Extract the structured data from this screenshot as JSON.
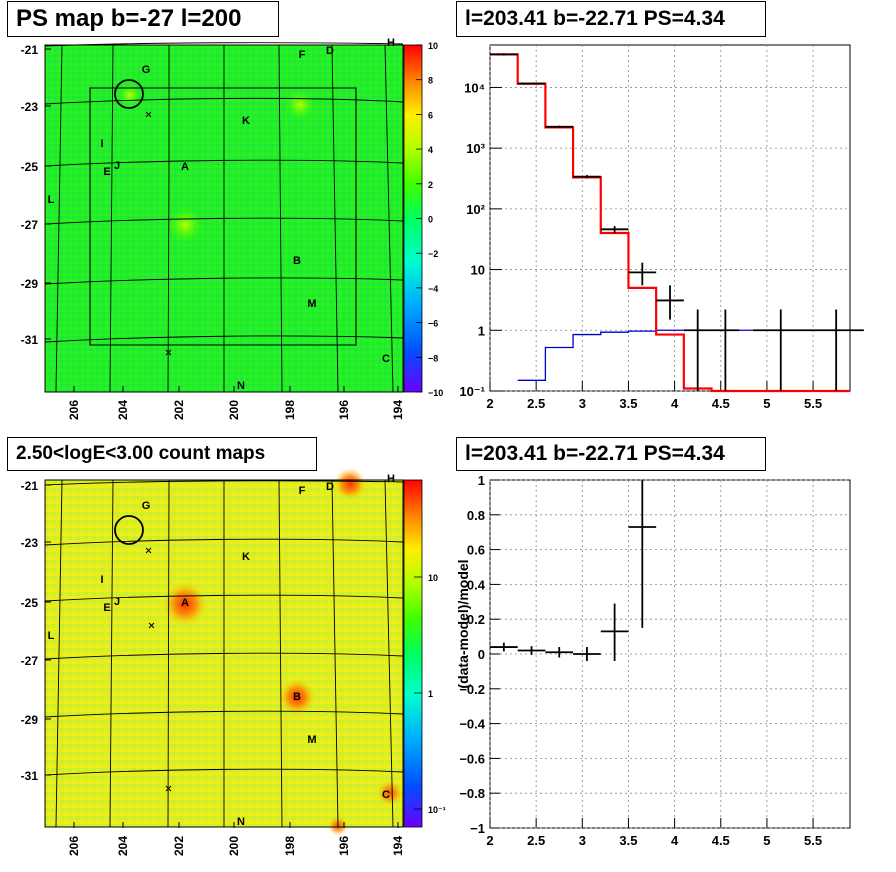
{
  "panels": {
    "tl_title": "PS map b=-27 l=200",
    "tr_title": "l=203.41 b=-22.71 PS=4.34",
    "bl_title": "2.50<logE<3.00 count maps",
    "br_title": "l=203.41 b=-22.71 PS=4.34"
  },
  "colors": {
    "spectrum_data": "#000000",
    "spectrum_model": "#ff0000",
    "spectrum_background": "#0000cc",
    "map_grid": "#000000",
    "palette": [
      "#6a00ff",
      "#0050ff",
      "#00c8ff",
      "#00ff90",
      "#00ff00",
      "#b0ff00",
      "#ffee00",
      "#ff8000",
      "#ff0000"
    ]
  },
  "maps": {
    "lat_ticks": [
      "-21",
      "-23",
      "-25",
      "-27",
      "-29",
      "-31"
    ],
    "lon_ticks": [
      "206",
      "204",
      "202",
      "200",
      "198",
      "196",
      "194"
    ],
    "source_labels": [
      "H",
      "F",
      "D",
      "G",
      "K",
      "I",
      "J",
      "E",
      "A",
      "L",
      "B",
      "M",
      "C",
      "N"
    ],
    "ts_colorbar_ticks": [
      "10",
      "8",
      "6",
      "4",
      "2",
      "0",
      "−2",
      "−4",
      "−6",
      "−8",
      "−10"
    ],
    "count_colorbar_ticks": [
      "10",
      "1",
      "10⁻¹"
    ]
  },
  "chart_data": [
    {
      "type": "heatmap",
      "panel": "PS map",
      "title": "PS map b=-27 l=200",
      "x_ticks": [
        "206",
        "204",
        "202",
        "200",
        "198",
        "196",
        "194"
      ],
      "y_ticks": [
        "-21",
        "-23",
        "-25",
        "-27",
        "-29",
        "-31"
      ],
      "colorbar_range": [
        -10,
        10
      ],
      "dominant_value": 0,
      "circled_source": {
        "l": 203.41,
        "b": -22.71
      }
    },
    {
      "type": "line",
      "title": "l=203.41 b=-22.71 PS=4.34",
      "xlim": [
        2,
        5.9
      ],
      "ylim": [
        0.1,
        50000
      ],
      "yscale": "log",
      "grid": true,
      "x_ticks": [
        "2",
        "2.5",
        "3",
        "3.5",
        "4",
        "4.5",
        "5",
        "5.5"
      ],
      "y_ticks": [
        "10⁻¹",
        "1",
        "10",
        "10²",
        "10³",
        "10⁴"
      ],
      "series": [
        {
          "style": "step",
          "color": "#ff0000",
          "edges": [
            2.0,
            2.3,
            2.6,
            2.9,
            3.2,
            3.5,
            3.8,
            4.1,
            4.4,
            4.7,
            5.0,
            5.3,
            5.6,
            5.9
          ],
          "values": [
            35000,
            11500,
            2200,
            330,
            40,
            5,
            0.85,
            0.11,
            0.1,
            0.1,
            0.1,
            0.1,
            0.1
          ]
        },
        {
          "style": "step",
          "color": "#0000cc",
          "edges": [
            2.3,
            2.6,
            2.9,
            3.2,
            3.5,
            3.8,
            4.1,
            4.4,
            4.7,
            5.0,
            5.3,
            5.6,
            5.9
          ],
          "values": [
            0.15,
            0.52,
            0.85,
            0.93,
            0.97,
            1.0,
            1.0,
            1.0,
            1.0,
            1.0,
            1.0,
            1.0
          ]
        },
        {
          "style": "errorbar",
          "color": "#000000",
          "x": [
            2.15,
            2.45,
            2.75,
            3.05,
            3.35,
            3.65,
            3.95,
            4.25,
            4.55,
            5.15,
            5.75
          ],
          "xerr": [
            0.15,
            0.15,
            0.15,
            0.15,
            0.15,
            0.15,
            0.15,
            0.15,
            0.15,
            0.3,
            0.3
          ],
          "y": [
            35000,
            11600,
            2250,
            340,
            46,
            9,
            3.1,
            1.0,
            1.0,
            1.0,
            1.0
          ],
          "ylo": [
            33500,
            11200,
            2150,
            320,
            40,
            5.5,
            1.5,
            0.1,
            0.1,
            0.1,
            0.1
          ],
          "yhi": [
            36500,
            12000,
            2350,
            360,
            52,
            13,
            5.5,
            2.2,
            2.2,
            2.2,
            2.2
          ]
        }
      ]
    },
    {
      "type": "heatmap",
      "panel": "count map",
      "title": "2.50<logE<3.00 count maps",
      "x_ticks": [
        "206",
        "204",
        "202",
        "200",
        "198",
        "196",
        "194"
      ],
      "y_ticks": [
        "-21",
        "-23",
        "-25",
        "-27",
        "-29",
        "-31"
      ],
      "colorbar_scale": "log",
      "colorbar_ticks": [
        "10",
        "1",
        "10⁻¹"
      ],
      "bright_sources": [
        "A",
        "B",
        "D",
        "C"
      ]
    },
    {
      "type": "scatter",
      "title": "l=203.41 b=-22.71 PS=4.34",
      "ylabel": "(data-model)/model",
      "xlim": [
        2,
        5.9
      ],
      "ylim": [
        -1,
        1
      ],
      "grid": true,
      "x_ticks": [
        "2",
        "2.5",
        "3",
        "3.5",
        "4",
        "4.5",
        "5",
        "5.5"
      ],
      "y_ticks": [
        "1",
        "0.8",
        "0.6",
        "0.4",
        "0.2",
        "0",
        "−0.2",
        "−0.4",
        "−0.6",
        "−0.8",
        "−1"
      ],
      "series": [
        {
          "style": "errorbar",
          "color": "#000000",
          "x": [
            2.15,
            2.45,
            2.75,
            3.05,
            3.35,
            3.65
          ],
          "xerr": [
            0.15,
            0.15,
            0.15,
            0.15,
            0.15,
            0.15
          ],
          "y": [
            0.04,
            0.02,
            0.01,
            0.0,
            0.13,
            0.73
          ],
          "ylo": [
            0.015,
            -0.005,
            -0.02,
            -0.04,
            -0.04,
            0.15
          ],
          "yhi": [
            0.065,
            0.045,
            0.04,
            0.04,
            0.29,
            1.0
          ]
        }
      ]
    }
  ]
}
